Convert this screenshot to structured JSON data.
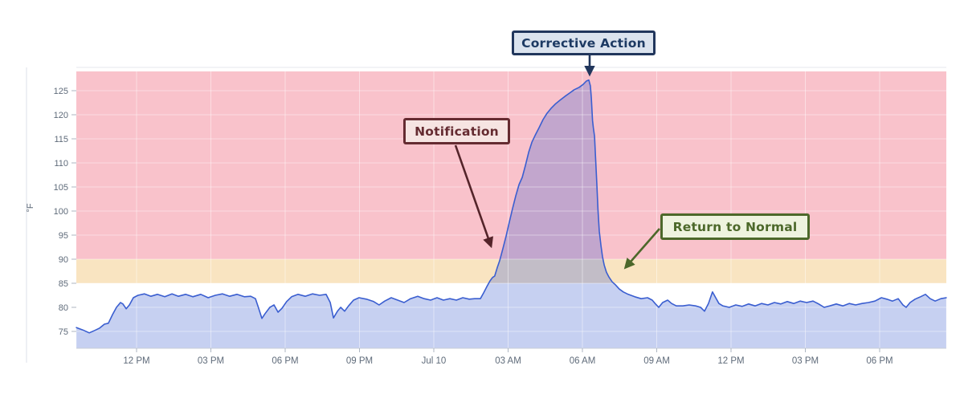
{
  "chart_data": {
    "type": "area",
    "title": "",
    "ylabel": "°F",
    "y_ticks": [
      75,
      80,
      85,
      90,
      95,
      100,
      105,
      110,
      115,
      120,
      125
    ],
    "ylim": [
      71.5,
      129
    ],
    "x_range_hours": [
      -2.43,
      32.69
    ],
    "grid": true,
    "axis_text_color": "#5f6b7a",
    "x_ticks": [
      {
        "t": 0,
        "label": "12 PM"
      },
      {
        "t": 3,
        "label": "03 PM"
      },
      {
        "t": 6,
        "label": "06 PM"
      },
      {
        "t": 9,
        "label": "09 PM"
      },
      {
        "t": 12,
        "label": "Jul 10"
      },
      {
        "t": 15,
        "label": "03 AM"
      },
      {
        "t": 18,
        "label": "06 AM"
      },
      {
        "t": 21,
        "label": "09 AM"
      },
      {
        "t": 24,
        "label": "12 PM"
      },
      {
        "t": 27,
        "label": "03 PM"
      },
      {
        "t": 30,
        "label": "06 PM"
      }
    ],
    "zones": [
      {
        "name": "alert-zone",
        "from_f": 90,
        "to_f": 129,
        "color": "#f9c2cb"
      },
      {
        "name": "warning-zone",
        "from_f": 85,
        "to_f": 90,
        "color": "#f9e4c1"
      }
    ],
    "series": [
      {
        "name": "temperature",
        "line_color": "#3a5ed0",
        "fill_color": "#4e6cd3",
        "fill_opacity": 0.32,
        "points": [
          [
            -2.43,
            75.8
          ],
          [
            -2.17,
            75.3
          ],
          [
            -1.91,
            74.7
          ],
          [
            -1.69,
            75.2
          ],
          [
            -1.49,
            75.7
          ],
          [
            -1.3,
            76.5
          ],
          [
            -1.14,
            76.7
          ],
          [
            -0.97,
            78.5
          ],
          [
            -0.81,
            80.0
          ],
          [
            -0.65,
            81.0
          ],
          [
            -0.55,
            80.7
          ],
          [
            -0.42,
            79.7
          ],
          [
            -0.29,
            80.5
          ],
          [
            -0.13,
            82.0
          ],
          [
            0.06,
            82.5
          ],
          [
            0.32,
            82.8
          ],
          [
            0.58,
            82.3
          ],
          [
            0.84,
            82.7
          ],
          [
            1.14,
            82.2
          ],
          [
            1.43,
            82.8
          ],
          [
            1.69,
            82.3
          ],
          [
            1.98,
            82.7
          ],
          [
            2.27,
            82.2
          ],
          [
            2.59,
            82.7
          ],
          [
            2.89,
            82.0
          ],
          [
            3.18,
            82.5
          ],
          [
            3.47,
            82.8
          ],
          [
            3.76,
            82.3
          ],
          [
            4.05,
            82.7
          ],
          [
            4.35,
            82.2
          ],
          [
            4.61,
            82.3
          ],
          [
            4.8,
            81.8
          ],
          [
            4.93,
            79.8
          ],
          [
            5.06,
            77.7
          ],
          [
            5.19,
            78.7
          ],
          [
            5.38,
            80.0
          ],
          [
            5.55,
            80.5
          ],
          [
            5.71,
            79.0
          ],
          [
            5.87,
            79.8
          ],
          [
            6.06,
            81.2
          ],
          [
            6.26,
            82.2
          ],
          [
            6.52,
            82.7
          ],
          [
            6.81,
            82.3
          ],
          [
            7.1,
            82.8
          ],
          [
            7.39,
            82.5
          ],
          [
            7.65,
            82.7
          ],
          [
            7.82,
            81.0
          ],
          [
            7.95,
            77.8
          ],
          [
            8.11,
            79.2
          ],
          [
            8.24,
            80.0
          ],
          [
            8.4,
            79.2
          ],
          [
            8.56,
            80.3
          ],
          [
            8.76,
            81.5
          ],
          [
            8.98,
            82.0
          ],
          [
            9.28,
            81.7
          ],
          [
            9.57,
            81.2
          ],
          [
            9.79,
            80.5
          ],
          [
            10.02,
            81.3
          ],
          [
            10.28,
            82.0
          ],
          [
            10.54,
            81.5
          ],
          [
            10.8,
            81.0
          ],
          [
            11.06,
            81.8
          ],
          [
            11.35,
            82.3
          ],
          [
            11.61,
            81.8
          ],
          [
            11.87,
            81.5
          ],
          [
            12.13,
            82.0
          ],
          [
            12.39,
            81.5
          ],
          [
            12.65,
            81.8
          ],
          [
            12.91,
            81.5
          ],
          [
            13.17,
            82.0
          ],
          [
            13.43,
            81.7
          ],
          [
            13.65,
            81.8
          ],
          [
            13.88,
            81.8
          ],
          [
            14.01,
            83.0
          ],
          [
            14.14,
            84.3
          ],
          [
            14.27,
            85.5
          ],
          [
            14.37,
            86.2
          ],
          [
            14.46,
            86.5
          ],
          [
            14.56,
            88.2
          ],
          [
            14.66,
            89.7
          ],
          [
            14.79,
            92.2
          ],
          [
            14.92,
            94.8
          ],
          [
            15.05,
            97.7
          ],
          [
            15.18,
            100.5
          ],
          [
            15.31,
            103.2
          ],
          [
            15.44,
            105.5
          ],
          [
            15.57,
            107.0
          ],
          [
            15.7,
            109.5
          ],
          [
            15.83,
            112.2
          ],
          [
            15.96,
            114.3
          ],
          [
            16.09,
            115.7
          ],
          [
            16.25,
            117.3
          ],
          [
            16.41,
            119.0
          ],
          [
            16.57,
            120.3
          ],
          [
            16.73,
            121.3
          ],
          [
            16.9,
            122.2
          ],
          [
            17.09,
            123.0
          ],
          [
            17.29,
            123.8
          ],
          [
            17.48,
            124.5
          ],
          [
            17.67,
            125.2
          ],
          [
            17.87,
            125.7
          ],
          [
            18.03,
            126.3
          ],
          [
            18.16,
            127.0
          ],
          [
            18.26,
            127.2
          ],
          [
            18.32,
            126.0
          ],
          [
            18.36,
            123.5
          ],
          [
            18.41,
            118.8
          ],
          [
            18.44,
            117.3
          ],
          [
            18.49,
            115.5
          ],
          [
            18.53,
            111.3
          ],
          [
            18.58,
            105.8
          ],
          [
            18.63,
            100.2
          ],
          [
            18.68,
            95.8
          ],
          [
            18.75,
            92.8
          ],
          [
            18.81,
            90.5
          ],
          [
            18.88,
            88.8
          ],
          [
            18.97,
            87.3
          ],
          [
            19.07,
            86.3
          ],
          [
            19.2,
            85.3
          ],
          [
            19.33,
            84.7
          ],
          [
            19.49,
            83.8
          ],
          [
            19.65,
            83.2
          ],
          [
            19.85,
            82.7
          ],
          [
            20.11,
            82.2
          ],
          [
            20.37,
            81.8
          ],
          [
            20.63,
            82.0
          ],
          [
            20.82,
            81.5
          ],
          [
            20.95,
            80.7
          ],
          [
            21.08,
            80.0
          ],
          [
            21.24,
            81.0
          ],
          [
            21.44,
            81.5
          ],
          [
            21.6,
            80.8
          ],
          [
            21.79,
            80.3
          ],
          [
            22.05,
            80.3
          ],
          [
            22.31,
            80.5
          ],
          [
            22.57,
            80.3
          ],
          [
            22.77,
            80.0
          ],
          [
            22.93,
            79.2
          ],
          [
            23.09,
            80.8
          ],
          [
            23.25,
            83.2
          ],
          [
            23.38,
            82.0
          ],
          [
            23.51,
            80.8
          ],
          [
            23.67,
            80.3
          ],
          [
            23.93,
            80.0
          ],
          [
            24.19,
            80.5
          ],
          [
            24.45,
            80.2
          ],
          [
            24.71,
            80.7
          ],
          [
            24.97,
            80.3
          ],
          [
            25.23,
            80.8
          ],
          [
            25.49,
            80.5
          ],
          [
            25.75,
            81.0
          ],
          [
            26.01,
            80.7
          ],
          [
            26.27,
            81.2
          ],
          [
            26.53,
            80.8
          ],
          [
            26.79,
            81.3
          ],
          [
            27.05,
            81.0
          ],
          [
            27.31,
            81.3
          ],
          [
            27.54,
            80.7
          ],
          [
            27.76,
            80.0
          ],
          [
            27.99,
            80.3
          ],
          [
            28.25,
            80.7
          ],
          [
            28.51,
            80.3
          ],
          [
            28.77,
            80.8
          ],
          [
            29.03,
            80.5
          ],
          [
            29.29,
            80.8
          ],
          [
            29.55,
            81.0
          ],
          [
            29.81,
            81.3
          ],
          [
            30.07,
            82.0
          ],
          [
            30.29,
            81.7
          ],
          [
            30.52,
            81.3
          ],
          [
            30.75,
            81.8
          ],
          [
            30.94,
            80.5
          ],
          [
            31.07,
            80.0
          ],
          [
            31.23,
            81.0
          ],
          [
            31.43,
            81.7
          ],
          [
            31.65,
            82.2
          ],
          [
            31.85,
            82.7
          ],
          [
            32.04,
            81.8
          ],
          [
            32.24,
            81.3
          ],
          [
            32.47,
            81.8
          ],
          [
            32.69,
            82.0
          ]
        ]
      }
    ],
    "annotations": [
      {
        "id": "corrective_action",
        "label": "Corrective Action",
        "t": 18.26,
        "value_f": 127,
        "text_color": "#1d3a63",
        "bg_color": "#dbe3ee",
        "border_color": "#21365c",
        "arrow_color": "#21365c"
      },
      {
        "id": "notification",
        "label": "Notification",
        "t": 14.5,
        "value_f": 90,
        "text_color": "#652b31",
        "bg_color": "#f6e4e2",
        "border_color": "#652b31",
        "arrow_color": "#54242a"
      },
      {
        "id": "return_to_normal",
        "label": "Return to Normal",
        "t": 19.6,
        "value_f": 87,
        "text_color": "#4c682a",
        "bg_color": "#eef3df",
        "border_color": "#4c682a",
        "arrow_color": "#4c682a"
      }
    ]
  }
}
